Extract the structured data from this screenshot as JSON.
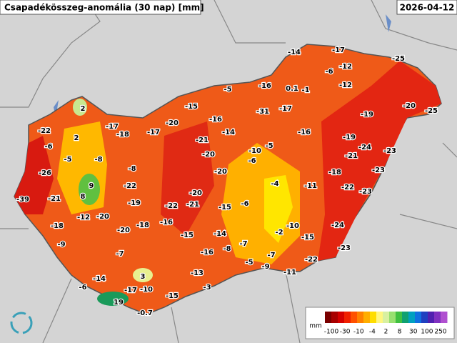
{
  "header": {
    "title": "Csapadékösszeg-anomália (30 nap) [mm]",
    "date": "2026-04-12"
  },
  "map": {
    "anomalies": [
      -14,
      -17,
      -25,
      -6,
      -12,
      -5,
      -16,
      0.1,
      -1,
      -12,
      -20,
      -25,
      2,
      -15,
      -31,
      -17,
      -19,
      -22,
      -17,
      -18,
      -17,
      -20,
      -16,
      -14,
      -16,
      2,
      -6,
      -21,
      -20,
      -10,
      -5,
      -19,
      -24,
      -21,
      -23,
      -5,
      -8,
      -6,
      -8,
      -26,
      9,
      -20,
      -18,
      -23,
      -22,
      -4,
      -11,
      -22,
      -23,
      -20,
      8,
      -19,
      -39,
      -21,
      -22,
      -21,
      -15,
      -6,
      -12,
      -20,
      -16,
      -18,
      -18,
      -24,
      -20,
      -10,
      -14,
      -15,
      -2,
      -15,
      -9,
      -8,
      -7,
      -16,
      -23,
      -7,
      -7,
      -5,
      -9,
      -22,
      -11,
      -13,
      3,
      -14,
      -6,
      -17,
      -10,
      -3,
      -15,
      19,
      -0.7
    ]
  },
  "legend": {
    "unit": "mm",
    "ticks": [
      -100,
      -30,
      -10,
      -4,
      2,
      8,
      30,
      100,
      250
    ],
    "colors": [
      "#7a0000",
      "#a80000",
      "#d40000",
      "#f02000",
      "#ff5000",
      "#ff8000",
      "#ffae00",
      "#ffdd00",
      "#fff680",
      "#d8f0a0",
      "#98e070",
      "#40c040",
      "#10a070",
      "#00a0c0",
      "#1070e0",
      "#2040c0",
      "#5020b0",
      "#8030c0",
      "#b050d0"
    ]
  }
}
